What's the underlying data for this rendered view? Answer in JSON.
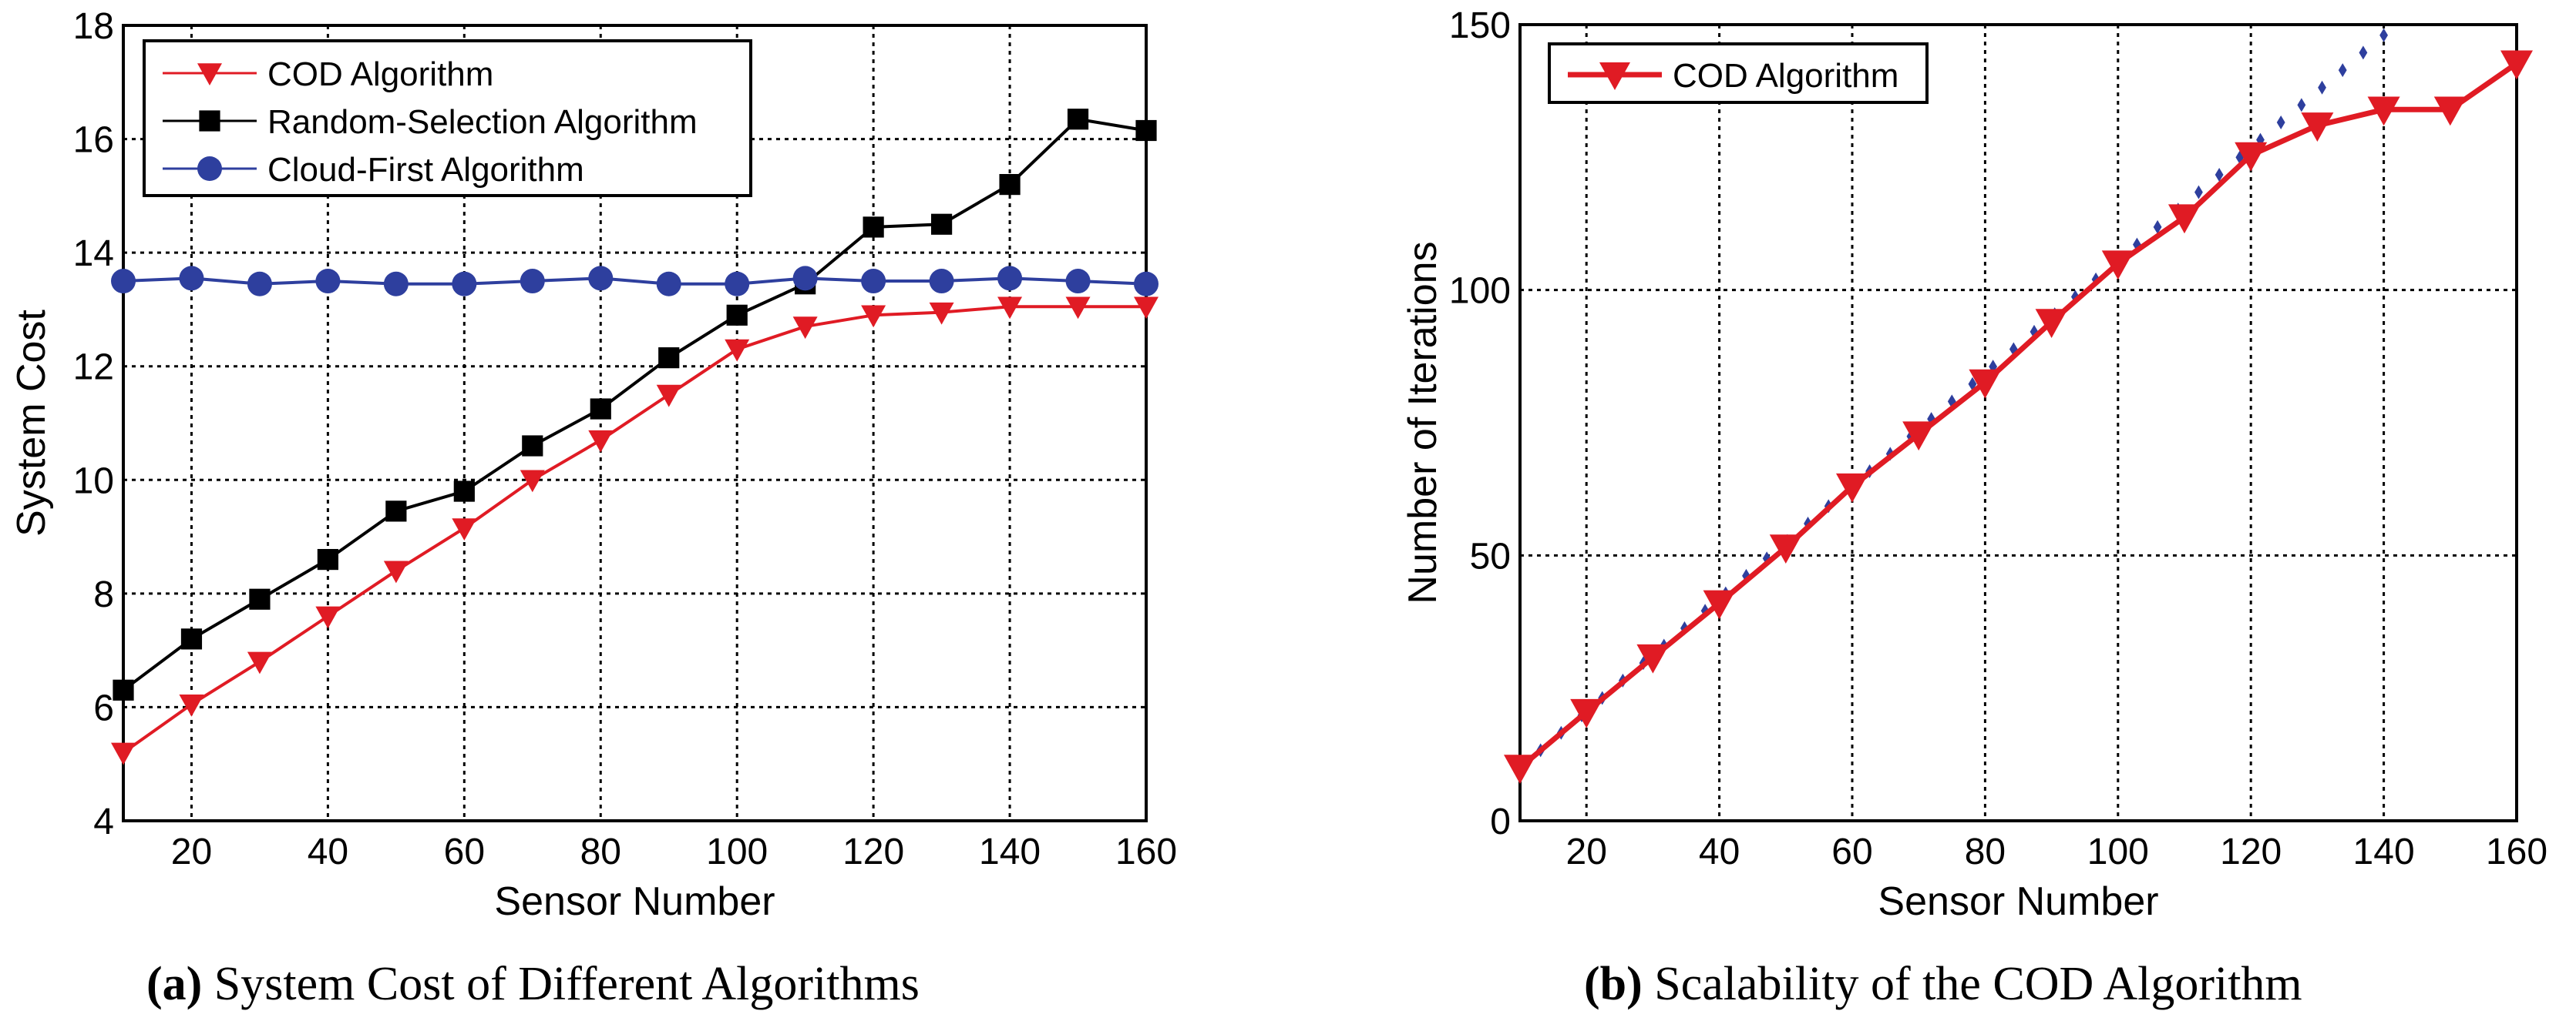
{
  "captions": [
    {
      "letter": "(a)",
      "text": "System Cost of Different Algorithms"
    },
    {
      "letter": "(b)",
      "text": "Scalability of the COD Algorithm"
    }
  ],
  "colors": {
    "cod": "#e01b24",
    "random": "#000000",
    "cloud": "#2e3f9e",
    "trend": "#2e3f9e"
  },
  "chart_data": [
    {
      "type": "line",
      "title": "System Cost of Different Algorithms",
      "xlabel": "Sensor Number",
      "ylabel": "System Cost",
      "xlim": [
        10,
        160
      ],
      "ylim": [
        4,
        18
      ],
      "xticks": [
        20,
        40,
        60,
        80,
        100,
        120,
        140,
        160
      ],
      "yticks": [
        4,
        6,
        8,
        10,
        12,
        14,
        16,
        18
      ],
      "grid": true,
      "legend_position": "top-left",
      "x": [
        10,
        20,
        30,
        40,
        50,
        60,
        70,
        80,
        90,
        100,
        110,
        120,
        130,
        140,
        150,
        160
      ],
      "series": [
        {
          "name": "COD Algorithm",
          "marker": "triangle-down",
          "color_key": "cod",
          "values": [
            5.2,
            6.05,
            6.8,
            7.6,
            8.4,
            9.15,
            10.0,
            10.7,
            11.5,
            12.3,
            12.7,
            12.9,
            12.95,
            13.05,
            13.05,
            13.05
          ]
        },
        {
          "name": "Random-Selection Algorithm",
          "marker": "square",
          "color_key": "random",
          "values": [
            6.3,
            7.2,
            7.9,
            8.6,
            9.45,
            9.8,
            10.6,
            11.25,
            12.15,
            12.9,
            13.45,
            14.45,
            14.5,
            15.2,
            16.35,
            16.15
          ]
        },
        {
          "name": "Cloud-First Algorithm",
          "marker": "circle",
          "color_key": "cloud",
          "values": [
            13.5,
            13.55,
            13.45,
            13.5,
            13.45,
            13.45,
            13.5,
            13.55,
            13.45,
            13.45,
            13.55,
            13.5,
            13.5,
            13.55,
            13.5,
            13.45
          ]
        }
      ]
    },
    {
      "type": "line",
      "title": "Scalability of the COD Algorithm",
      "xlabel": "Sensor Number",
      "ylabel": "Number of Iterations",
      "xlim": [
        10,
        160
      ],
      "ylim": [
        0,
        150
      ],
      "xticks": [
        20,
        40,
        60,
        80,
        100,
        120,
        140,
        160
      ],
      "yticks": [
        0,
        50,
        100,
        150
      ],
      "grid": true,
      "legend_position": "top-left",
      "x": [
        10,
        20,
        30,
        40,
        50,
        60,
        70,
        80,
        90,
        100,
        110,
        120,
        130,
        140,
        150,
        160
      ],
      "series": [
        {
          "name": "COD Algorithm",
          "marker": "triangle-down",
          "color_key": "cod",
          "values": [
            10,
            20.5,
            30.8,
            41,
            51.5,
            63,
            72.8,
            82.6,
            94,
            105,
            113.7,
            125.4,
            131,
            134,
            134,
            142.7
          ]
        }
      ],
      "trend_line": {
        "style": "dotted-diamond",
        "color_key": "trend",
        "x": [
          10,
          140
        ],
        "y": [
          10,
          148
        ]
      }
    }
  ]
}
